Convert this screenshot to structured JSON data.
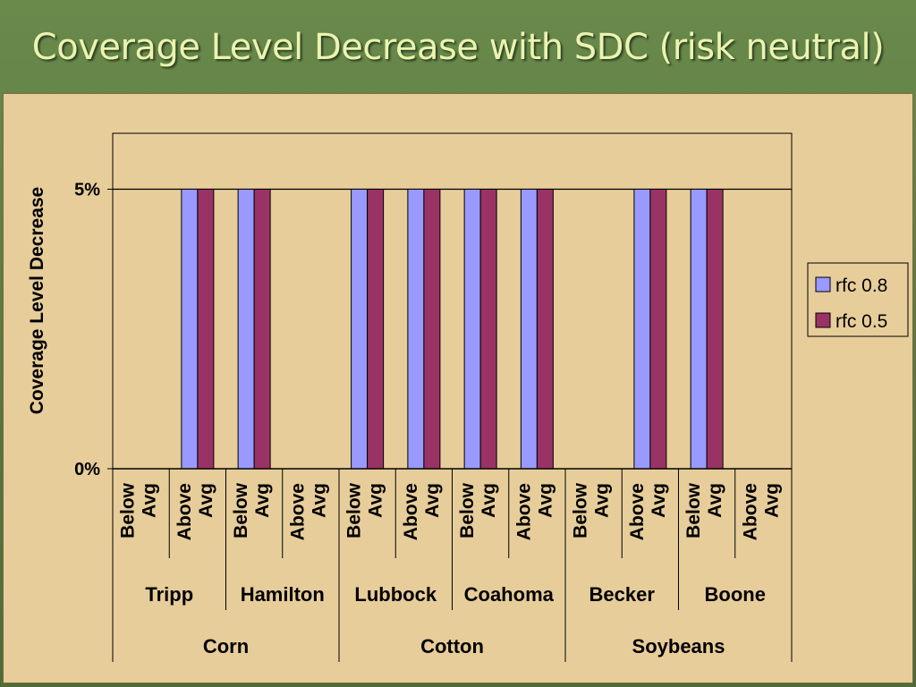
{
  "slide": {
    "title": "Coverage Level Decrease with SDC (risk neutral)"
  },
  "chart_data": {
    "type": "bar",
    "title": "",
    "ylabel": "Coverage Level Decrease",
    "xlabel": "",
    "ylim": [
      0,
      0.06
    ],
    "yticks": [
      {
        "value": 0,
        "label": "0%"
      },
      {
        "value": 0.05,
        "label": "5%"
      }
    ],
    "grid": true,
    "legend": "right",
    "categories": [
      "Below Avg",
      "Above Avg",
      "Below Avg",
      "Above Avg",
      "Below Avg",
      "Above Avg",
      "Below Avg",
      "Above Avg",
      "Below Avg",
      "Above Avg",
      "Below Avg",
      "Above Avg"
    ],
    "category_lines": [
      [
        "Below",
        "Avg"
      ],
      [
        "Above",
        "Avg"
      ],
      [
        "Below",
        "Avg"
      ],
      [
        "Above",
        "Avg"
      ],
      [
        "Below",
        "Avg"
      ],
      [
        "Above",
        "Avg"
      ],
      [
        "Below",
        "Avg"
      ],
      [
        "Above",
        "Avg"
      ],
      [
        "Below",
        "Avg"
      ],
      [
        "Above",
        "Avg"
      ],
      [
        "Below",
        "Avg"
      ],
      [
        "Above",
        "Avg"
      ]
    ],
    "locations": [
      "Tripp",
      "Hamilton",
      "Lubbock",
      "Coahoma",
      "Becker",
      "Boone"
    ],
    "crops": [
      "Corn",
      "Cotton",
      "Soybeans"
    ],
    "series": [
      {
        "name": "rfc 0.8",
        "color": "#9999ff",
        "values": [
          0,
          0.05,
          0.05,
          0,
          0.05,
          0.05,
          0.05,
          0.05,
          0,
          0.05,
          0.05,
          0
        ]
      },
      {
        "name": "rfc 0.5",
        "color": "#993366",
        "values": [
          0,
          0.05,
          0.05,
          0,
          0.05,
          0.05,
          0.05,
          0.05,
          0,
          0.05,
          0.05,
          0
        ]
      }
    ]
  }
}
